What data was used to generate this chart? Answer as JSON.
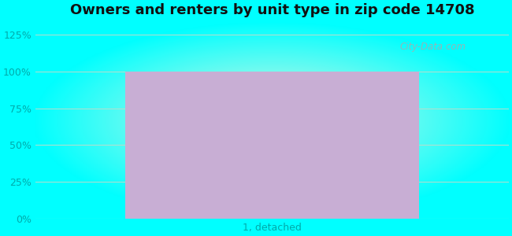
{
  "title": "Owners and renters by unit type in zip code 14708",
  "categories": [
    "1, detached"
  ],
  "values": [
    100
  ],
  "bar_color": "#c8aed4",
  "yticks": [
    0,
    25,
    50,
    75,
    100,
    125
  ],
  "ytick_labels": [
    "0%",
    "25%",
    "50%",
    "75%",
    "100%",
    "125%"
  ],
  "ylim_min": 0,
  "ylim_max": 133,
  "title_fontsize": 13,
  "tick_color": "#00aaaa",
  "grid_color": "#bbddcc",
  "bg_outer": [
    0,
    255,
    255
  ],
  "bg_inner": [
    232,
    245,
    224
  ],
  "watermark": "City-Data.com",
  "fig_width": 6.5,
  "fig_height": 3.0,
  "dpi": 100
}
